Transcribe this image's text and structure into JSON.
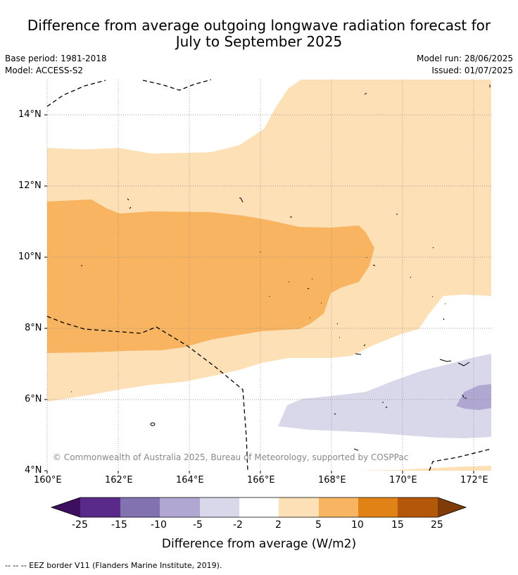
{
  "title_line1": "Difference from average outgoing longwave radiation forecast for",
  "title_line2": "July to September 2025",
  "meta": {
    "base_period": "Base period: 1981-2018",
    "model": "Model: ACCESS-S2",
    "model_run": "Model run: 28/06/2025",
    "issued": "Issued: 01/07/2025"
  },
  "map": {
    "lat_labels": [
      "14°N",
      "12°N",
      "10°N",
      "8°N",
      "6°N",
      "4°N"
    ],
    "lon_labels": [
      "160°E",
      "162°E",
      "164°E",
      "166°E",
      "168°E",
      "170°E",
      "172°E"
    ],
    "copyright": "© Commonwealth of Australia 2025, Bureau of Meteorology, supported by COSPPac"
  },
  "colorbar": {
    "title": "Difference from average (W/m2)",
    "tick_labels": [
      "-25",
      "-15",
      "-10",
      "-5",
      "-2",
      "2",
      "5",
      "10",
      "15",
      "25"
    ],
    "colors": [
      "#3d0f5e",
      "#5a2a8a",
      "#8272b0",
      "#b0a8d2",
      "#d8d8ea",
      "#ffffff",
      "#fde0b5",
      "#f9b461",
      "#e08216",
      "#b3570a",
      "#7f3b08"
    ]
  },
  "footnote": "--  --  -- EEZ border V11 (Flanders Marine Institute, 2019)."
}
